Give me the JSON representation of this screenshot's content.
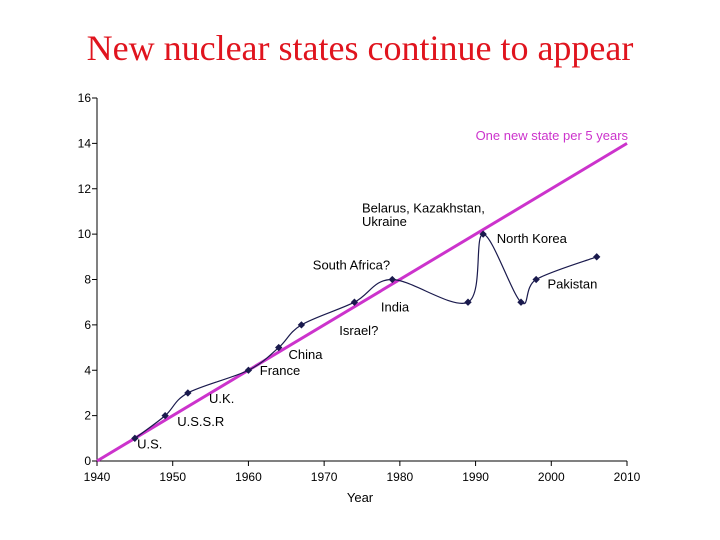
{
  "slide": {
    "title": "New nuclear states continue to appear"
  },
  "chart_data": {
    "type": "line",
    "xlabel": "Year",
    "ylabel": "",
    "xlim": [
      1940,
      2010
    ],
    "ylim": [
      0,
      16
    ],
    "xticks": [
      1940,
      1950,
      1960,
      1970,
      1980,
      1990,
      2000,
      2010
    ],
    "yticks": [
      0,
      2,
      4,
      6,
      8,
      10,
      12,
      14,
      16
    ],
    "grid": false,
    "series": [
      {
        "kind": "smooth-curve",
        "color": "#1a1a4d",
        "points": [
          {
            "x": 1945,
            "y": 1
          },
          {
            "x": 1949,
            "y": 2
          },
          {
            "x": 1952,
            "y": 3
          },
          {
            "x": 1960,
            "y": 4
          },
          {
            "x": 1964,
            "y": 5
          },
          {
            "x": 1967,
            "y": 6
          },
          {
            "x": 1974,
            "y": 7
          },
          {
            "x": 1979,
            "y": 8
          },
          {
            "x": 1989,
            "y": 7
          },
          {
            "x": 1991,
            "y": 10
          },
          {
            "x": 1996,
            "y": 7
          },
          {
            "x": 1998,
            "y": 8
          },
          {
            "x": 2006,
            "y": 9
          }
        ]
      },
      {
        "name": "One new state per 5 years",
        "kind": "trend-line",
        "color": "#cc33cc",
        "from": {
          "x": 1940,
          "y": 0
        },
        "to": {
          "x": 2010,
          "y": 14
        }
      }
    ],
    "annotations": [
      {
        "text": "U.S.",
        "x": 1945.3,
        "y": 0.55,
        "anchor": "start"
      },
      {
        "text": "U.S.S.R",
        "x": 1950.6,
        "y": 1.55,
        "anchor": "start"
      },
      {
        "text": "U.K.",
        "x": 1954.8,
        "y": 2.55,
        "anchor": "start"
      },
      {
        "text": "France",
        "x": 1961.5,
        "y": 3.8,
        "anchor": "start"
      },
      {
        "text": "China",
        "x": 1965.3,
        "y": 4.5,
        "anchor": "start"
      },
      {
        "text": "Israel?",
        "x": 1972.0,
        "y": 5.55,
        "anchor": "start"
      },
      {
        "text": "India",
        "x": 1977.5,
        "y": 6.6,
        "anchor": "start"
      },
      {
        "text": "South Africa?",
        "x": 1968.5,
        "y": 8.45,
        "anchor": "start"
      },
      {
        "text": "Belarus, Kazakhstan,",
        "x": 1975.0,
        "y": 10.95,
        "anchor": "start"
      },
      {
        "text": "Ukraine",
        "x": 1975.0,
        "y": 10.35,
        "anchor": "start"
      },
      {
        "text": "North Korea",
        "x": 1992.8,
        "y": 9.6,
        "anchor": "start"
      },
      {
        "text": "Pakistan",
        "x": 1999.5,
        "y": 7.6,
        "anchor": "start"
      },
      {
        "text": "One new state per 5 years",
        "x": 1990.0,
        "y": 14.15,
        "anchor": "start",
        "color": "#cc33cc"
      }
    ]
  }
}
